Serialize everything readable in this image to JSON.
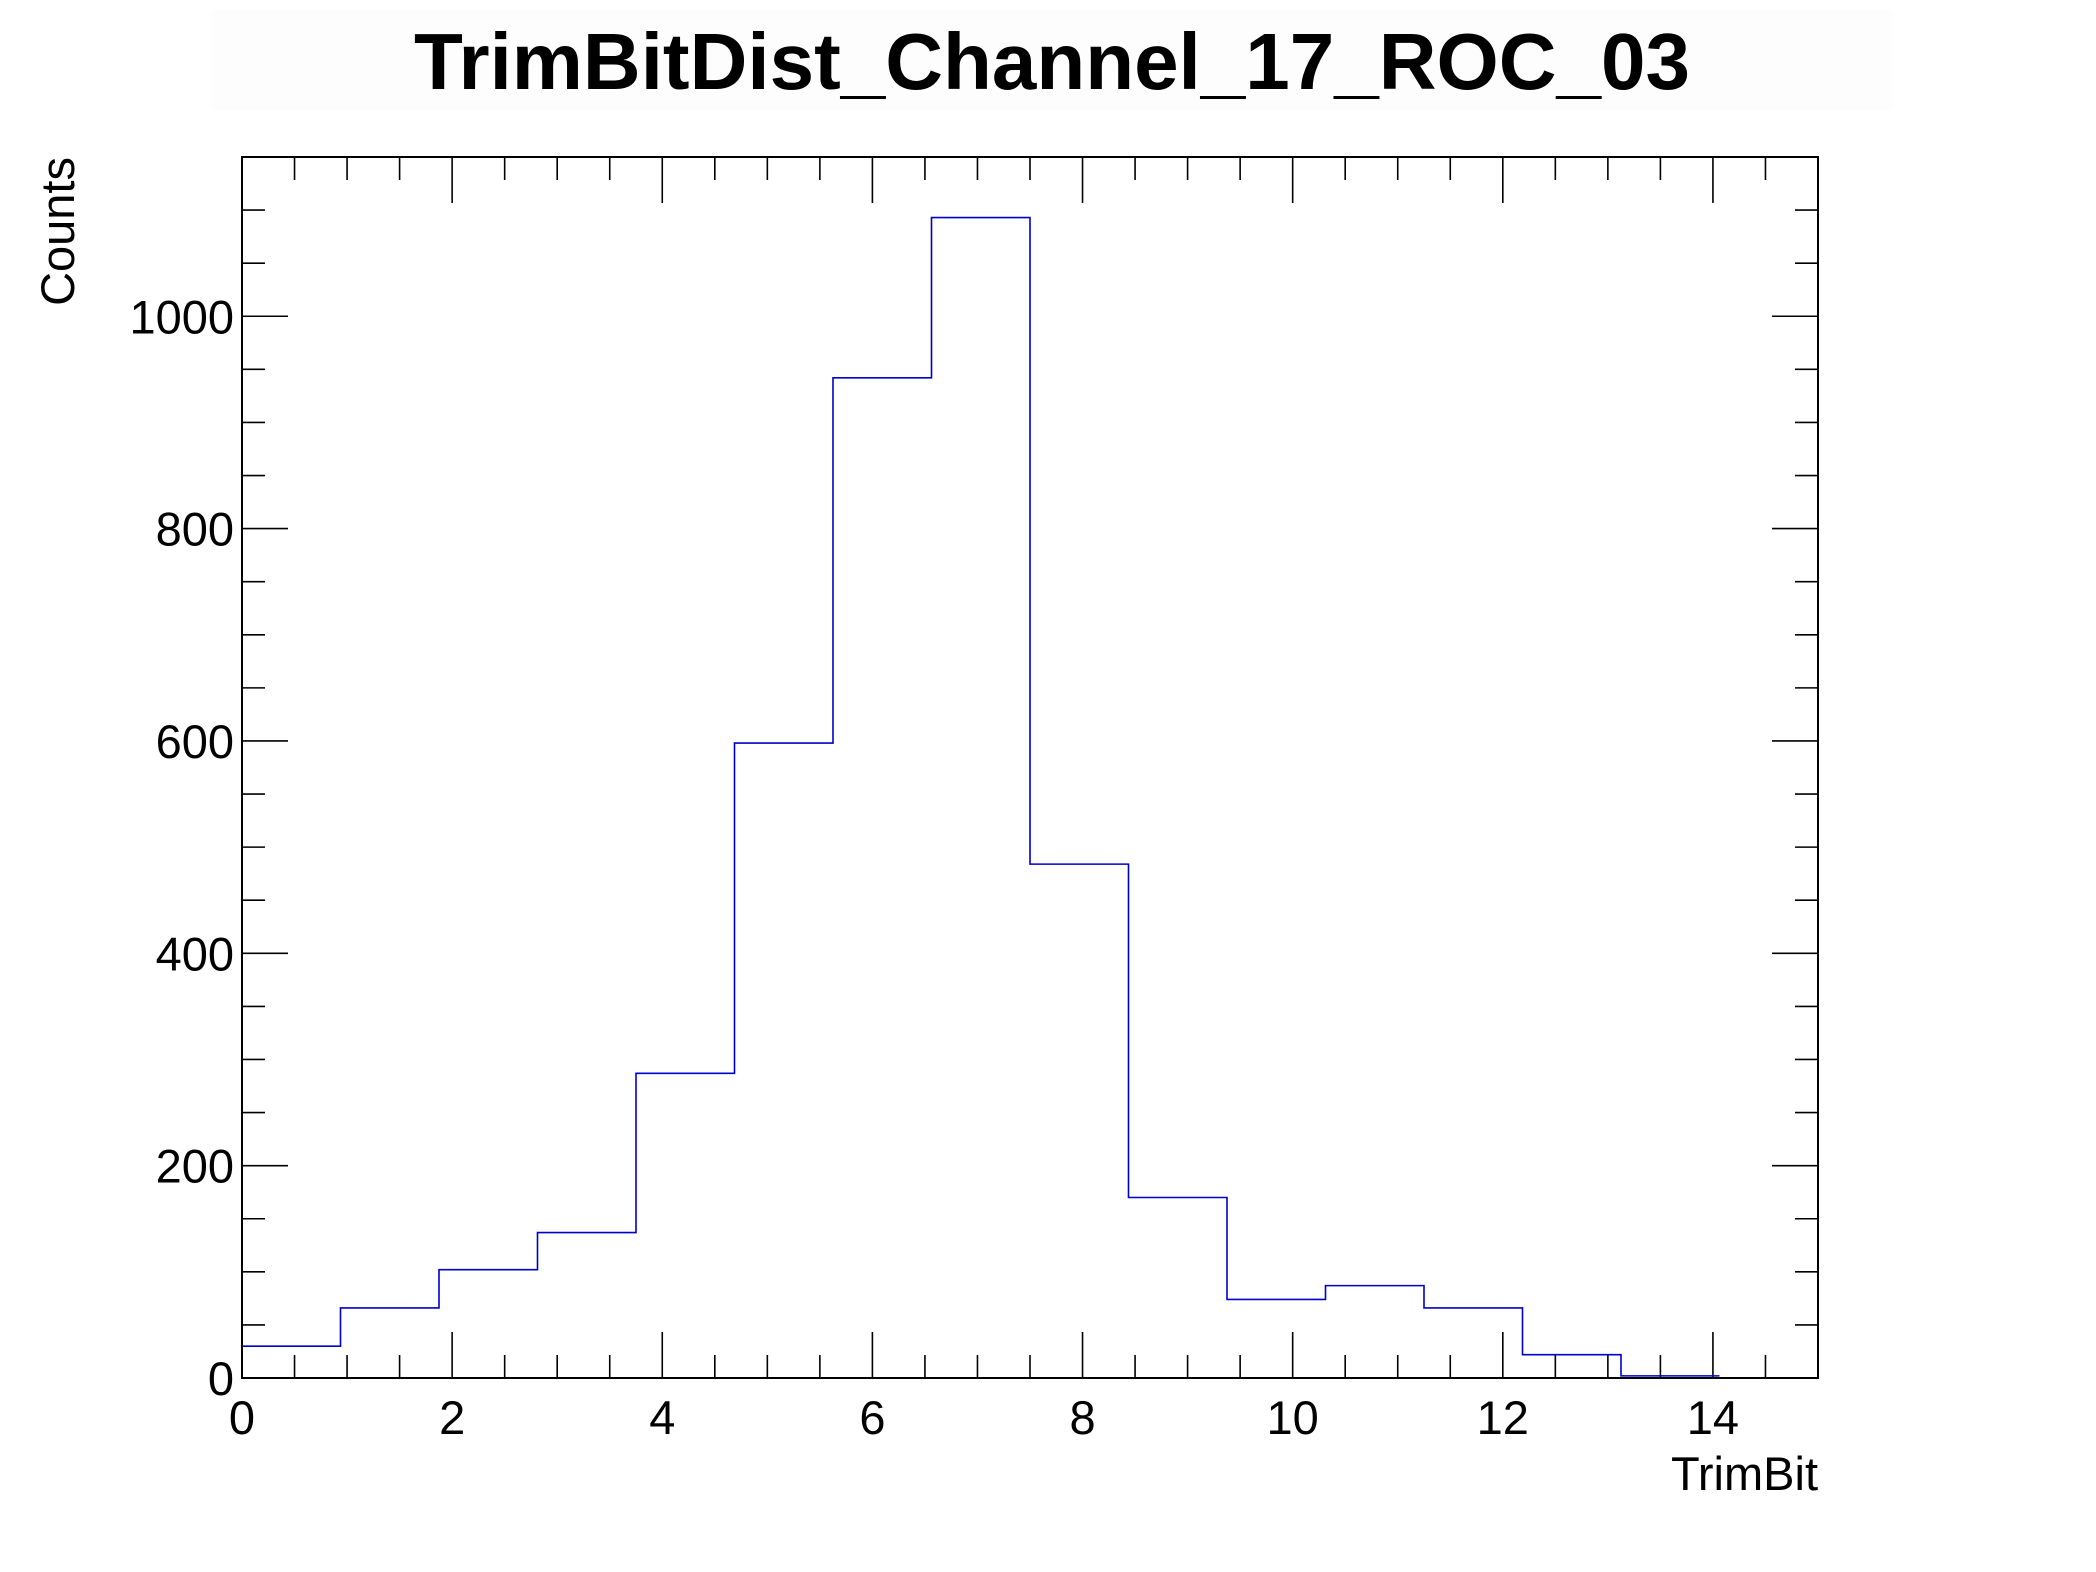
{
  "chart_data": {
    "type": "bar",
    "title": "TrimBitDist_Channel_17_ROC_03",
    "xlabel": "TrimBit",
    "ylabel": "Counts",
    "xlim": [
      0,
      15
    ],
    "ylim": [
      0,
      1150
    ],
    "bin_edges": [
      0,
      0.9375,
      1.875,
      2.8125,
      3.75,
      4.6875,
      5.625,
      6.5625,
      7.5,
      8.4375,
      9.375,
      10.3125,
      11.25,
      12.1875,
      13.125,
      14.0625
    ],
    "values": [
      30,
      66,
      102,
      137,
      287,
      598,
      942,
      1093,
      484,
      170,
      74,
      87,
      66,
      22,
      2
    ],
    "x_ticks": [
      "0",
      "2",
      "4",
      "6",
      "8",
      "10",
      "12",
      "14"
    ],
    "y_ticks": [
      "0",
      "200",
      "400",
      "600",
      "800",
      "1000"
    ],
    "line_color": "#0000cc",
    "grid": false,
    "histogram_style": "step"
  }
}
